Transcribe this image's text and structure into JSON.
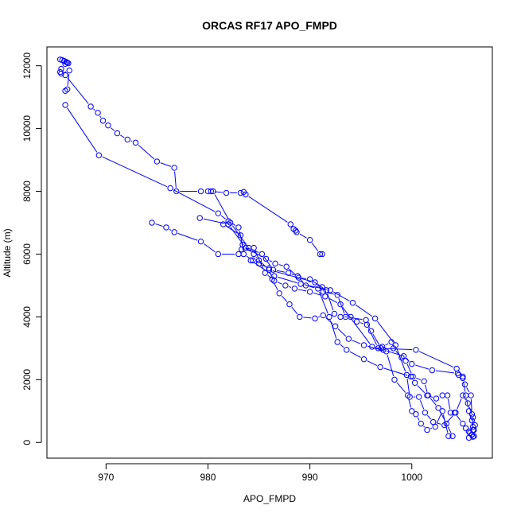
{
  "chart_data": {
    "type": "line",
    "title": "ORCAS RF17 APO_FMPD",
    "xlabel": "APO_FMPD",
    "ylabel": "Altitude (m)",
    "xlim": [
      964.2,
      1007.9
    ],
    "ylim": [
      -500,
      12600
    ],
    "xticks": [
      970,
      980,
      990,
      1000
    ],
    "yticks": [
      0,
      2000,
      4000,
      6000,
      8000,
      10000,
      12000
    ],
    "grid": false,
    "legend": "none",
    "colors": {
      "series": "#0000ff",
      "axes": "#000000"
    },
    "series": [
      {
        "x": [
          965.5,
          965.7,
          965.9,
          966.1,
          966.2,
          966.3,
          966.0,
          965.6,
          965.5,
          965.6,
          966.4,
          966.2,
          966.0
        ],
        "y": [
          12200,
          12180,
          12150,
          12120,
          12100,
          12080,
          12060,
          11900,
          11800,
          11750,
          11850,
          11250,
          11200
        ]
      },
      {
        "x": [
          966.0,
          968.5,
          969.2,
          969.7,
          970.2,
          971.1,
          972.1,
          972.9,
          975.0,
          976.7,
          976.9,
          979.3,
          980.0,
          980.3,
          981.8,
          983.2,
          983.5,
          983.7,
          988.1,
          988.4,
          988.6,
          988.7,
          990.0,
          991.0,
          991.2
        ],
        "y": [
          11700,
          10700,
          10500,
          10250,
          10100,
          9850,
          9650,
          9550,
          8950,
          8750,
          8000,
          8000,
          8000,
          8000,
          7950,
          7950,
          7980,
          7900,
          6950,
          6800,
          6750,
          6700,
          6450,
          6000,
          6000
        ]
      },
      {
        "x": [
          966.0,
          969.3,
          976.3,
          981.0,
          982.0,
          983.0,
          983.4,
          984.5,
          985.0,
          986.0,
          990.5,
          991.2,
          991.3,
          992.7,
          993.5,
          995.5,
          996.0,
          997.0,
          1000.4,
          1004.4,
          1004.6,
          1005.0,
          1005.3,
          1005.6,
          1005.9,
          1006.0,
          1005.7,
          1006.1
        ],
        "y": [
          10750,
          9150,
          8100,
          7300,
          7050,
          6850,
          6300,
          6000,
          5800,
          5500,
          5100,
          4950,
          4800,
          4700,
          4000,
          3900,
          3550,
          3000,
          2950,
          2350,
          2150,
          2050,
          1500,
          1000,
          700,
          500,
          300,
          200
        ]
      },
      {
        "x": [
          974.5,
          975.9,
          976.7,
          979.3,
          981.0,
          983.0,
          983.3,
          984.5,
          985.6,
          986.5,
          987.6,
          988.5,
          990.0,
          991.5,
          993.0,
          996.1,
          997.2,
          999.2,
          1000.0,
          1002.0,
          1004.5,
          1005.0,
          1005.2,
          1005.8,
          1005.9,
          1006.0
        ],
        "y": [
          7000,
          6850,
          6700,
          6400,
          6000,
          6000,
          6150,
          6200,
          5400,
          5150,
          5000,
          4900,
          4800,
          4650,
          4400,
          3050,
          2950,
          2750,
          2500,
          2300,
          2200,
          2100,
          1850,
          1500,
          900,
          400
        ]
      },
      {
        "x": [
          979.2,
          982.0,
          983.7,
          985.7,
          986.6,
          987.7,
          988.9,
          990.0,
          991.6,
          992.4,
          993.0,
          994.0,
          994.6,
          995.6,
          996.7,
          997.1,
          998.0,
          998.2,
          999.0,
          999.4,
          1000.1,
          1001.2,
          1001.6,
          1002.6,
          1003.4,
          1004.0
        ],
        "y": [
          7150,
          6950,
          6200,
          5850,
          5700,
          5600,
          5250,
          5200,
          4850,
          4100,
          4000,
          4000,
          3850,
          3750,
          3000,
          3050,
          3200,
          3000,
          2700,
          2600,
          2100,
          1950,
          1500,
          1100,
          600,
          200
        ]
      },
      {
        "x": [
          980.5,
          982.2,
          984.0,
          985.3,
          986.4,
          987.9,
          988.8,
          989.6,
          990.8,
          991.9,
          992.7,
          993.6,
          995.3,
          996.9,
          999.9,
          1000.3,
          1001.5,
          1002.4,
          1003.0,
          1003.5,
          1003.8,
          1004.2,
          1005.0,
          1005.3,
          1005.6,
          1005.9
        ],
        "y": [
          8000,
          7000,
          6200,
          6000,
          5500,
          5400,
          5300,
          5000,
          4900,
          4000,
          3200,
          2950,
          2650,
          2400,
          2100,
          1900,
          1500,
          1400,
          1500,
          1500,
          950,
          950,
          600,
          450,
          350,
          250
        ]
      },
      {
        "x": [
          981.5,
          983.2,
          983.5,
          984.4,
          985.0,
          986.0,
          986.3,
          987.0,
          988.0,
          989.0,
          990.5,
          991.3,
          992.5,
          993.8,
          995.3,
          997.5,
          998.3,
          999.6,
          1000.0,
          1000.4,
          1000.9,
          1001.5,
          1002.3,
          1003.0,
          1003.6
        ],
        "y": [
          6950,
          6600,
          6000,
          5800,
          5700,
          5550,
          5200,
          4750,
          4400,
          4000,
          3950,
          4050,
          3700,
          3300,
          3100,
          2900,
          2000,
          1500,
          1000,
          900,
          600,
          400,
          500,
          1000,
          200
        ]
      },
      {
        "x": [
          984.2,
          986.5,
          989.1,
          992.0,
          994.2,
          996.4,
          998.4,
          999.5,
          999.8,
          1000.7,
          1001.3,
          1002.1,
          1003.2,
          1004.3,
          1005.0,
          1005.5,
          1006.0,
          1006.2,
          1006.1,
          1005.9,
          1006.0,
          1005.6
        ],
        "y": [
          5800,
          5300,
          5050,
          4850,
          4450,
          3950,
          3100,
          2150,
          1450,
          1450,
          950,
          650,
          550,
          950,
          1500,
          1250,
          800,
          550,
          400,
          250,
          180,
          150
        ]
      }
    ]
  }
}
